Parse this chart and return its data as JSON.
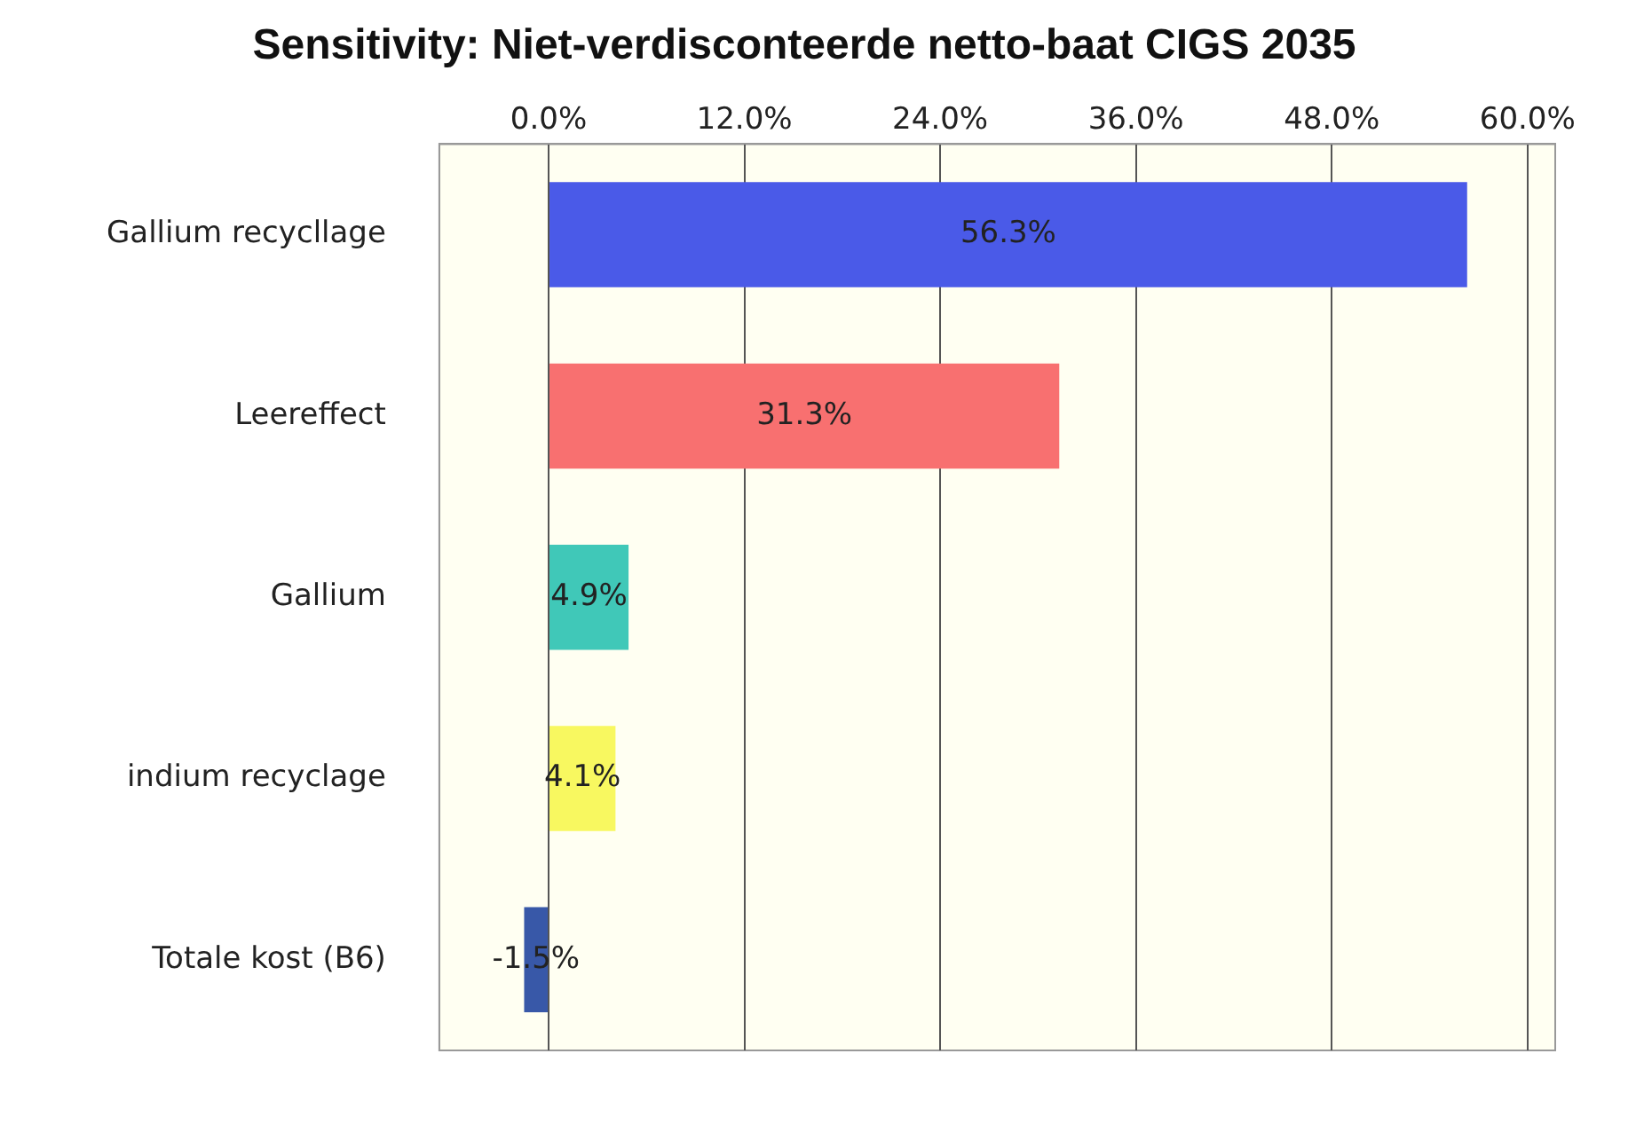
{
  "chart_data": {
    "type": "bar",
    "orientation": "horizontal",
    "title": "Sensitivity: Niet-verdisconteerde netto-baat CIGS 2035",
    "categories": [
      "Gallium recycllage",
      "Leereffect",
      "Gallium",
      "indium recyclage",
      "Totale kost (B6)"
    ],
    "values": [
      56.3,
      31.3,
      4.9,
      4.1,
      -1.5
    ],
    "colors": [
      "#4a5ae8",
      "#f87070",
      "#40c8b8",
      "#f8f860",
      "#3858a8"
    ],
    "value_labels": [
      "56.3%",
      "31.3%",
      "4.9%",
      "4.1%",
      "-1.5%"
    ],
    "xlim": [
      -6.7,
      61.7
    ],
    "xticks": [
      {
        "value": 0,
        "label": "0.0%"
      },
      {
        "value": 12,
        "label": "12.0%"
      },
      {
        "value": 24,
        "label": "24.0%"
      },
      {
        "value": 36,
        "label": "36.0%"
      },
      {
        "value": 48,
        "label": "48.0%"
      },
      {
        "value": 60,
        "label": "60.0%"
      }
    ],
    "grid": "x"
  }
}
